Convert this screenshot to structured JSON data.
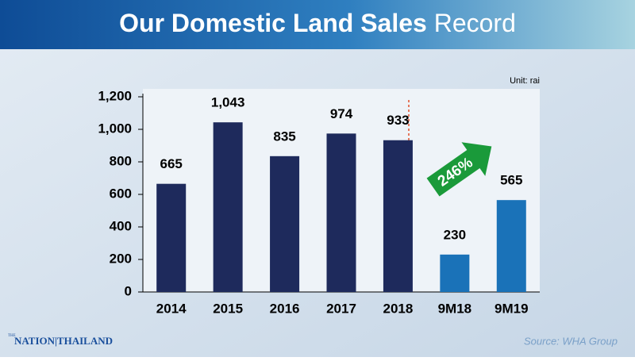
{
  "chart_data": {
    "type": "bar",
    "title_bold": "Our Domestic Land Sales",
    "title_regular": "Record",
    "unit": "Unit: rai",
    "categories": [
      "2014",
      "2015",
      "2016",
      "2017",
      "2018",
      "9M18",
      "9M19"
    ],
    "values": [
      665,
      1043,
      835,
      974,
      933,
      230,
      565
    ],
    "value_labels": [
      "665",
      "1,043",
      "835",
      "974",
      "933",
      "230",
      "565"
    ],
    "colors": [
      "#1e2a5c",
      "#1e2a5c",
      "#1e2a5c",
      "#1e2a5c",
      "#1e2a5c",
      "#1a72b8",
      "#1a72b8"
    ],
    "ylim": [
      0,
      1200
    ],
    "yticks": [
      0,
      200,
      400,
      600,
      800,
      {
        "value": 1000,
        "label": "1,000"
      },
      {
        "value": 1200,
        "label": "1,200"
      }
    ],
    "annotation": "246%",
    "source": "Source: WHA Group",
    "logo_small": "THE",
    "logo_left": "NATION",
    "logo_right": "THAILAND"
  }
}
